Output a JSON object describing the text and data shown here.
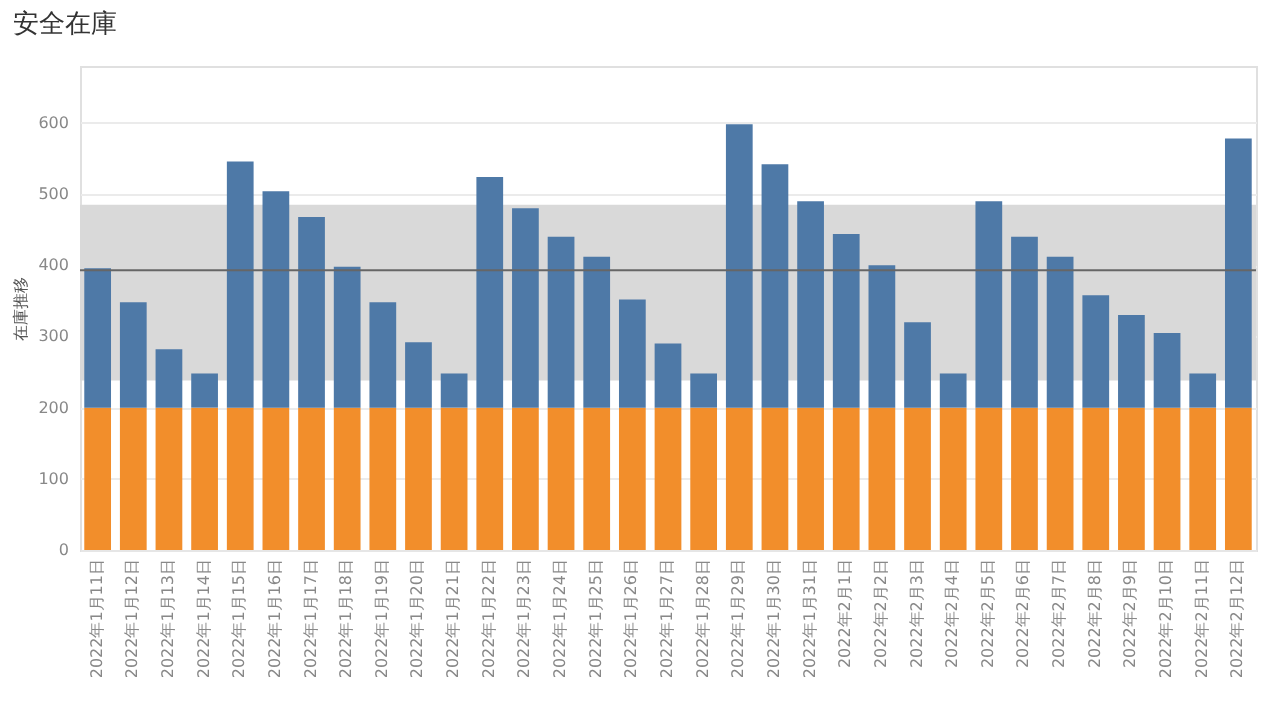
{
  "chart_data": {
    "type": "bar",
    "title": "安全在庫",
    "ylabel": "在庫推移",
    "stacked": true,
    "categories": [
      "2022年1月11日",
      "2022年1月12日",
      "2022年1月13日",
      "2022年1月14日",
      "2022年1月15日",
      "2022年1月16日",
      "2022年1月17日",
      "2022年1月18日",
      "2022年1月19日",
      "2022年1月20日",
      "2022年1月21日",
      "2022年1月22日",
      "2022年1月23日",
      "2022年1月24日",
      "2022年1月25日",
      "2022年1月26日",
      "2022年1月27日",
      "2022年1月28日",
      "2022年1月29日",
      "2022年1月30日",
      "2022年1月31日",
      "2022年2月1日",
      "2022年2月2日",
      "2022年2月3日",
      "2022年2月4日",
      "2022年2月5日",
      "2022年2月6日",
      "2022年2月7日",
      "2022年2月8日",
      "2022年2月9日",
      "2022年2月10日",
      "2022年2月11日",
      "2022年2月12日"
    ],
    "series": [
      {
        "color": "#f28e2b",
        "values": [
          200,
          200,
          200,
          200,
          200,
          200,
          200,
          200,
          200,
          200,
          200,
          200,
          200,
          200,
          200,
          200,
          200,
          200,
          200,
          200,
          200,
          200,
          200,
          200,
          200,
          200,
          200,
          200,
          200,
          200,
          200,
          200,
          200
        ]
      },
      {
        "color": "#4e79a7",
        "values": [
          196,
          148,
          82,
          48,
          346,
          304,
          268,
          198,
          148,
          92,
          48,
          324,
          280,
          240,
          212,
          152,
          90,
          48,
          398,
          342,
          290,
          244,
          200,
          120,
          48,
          290,
          240,
          212,
          158,
          130,
          105,
          48,
          378
        ]
      }
    ],
    "ylim": [
      0,
      680
    ],
    "yticks": [
      0,
      100,
      200,
      300,
      400,
      500,
      600
    ],
    "grid": "y",
    "ref_lines": [
      {
        "axis": "y",
        "value": 393,
        "color": "#666666"
      }
    ],
    "bands": [
      {
        "axis": "y",
        "from": 238,
        "to": 485,
        "color": "#d9d9d9"
      }
    ]
  }
}
